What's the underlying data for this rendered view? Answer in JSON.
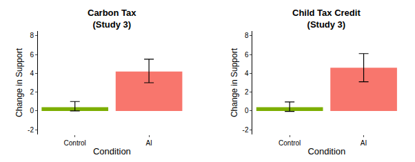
{
  "chart_data": [
    {
      "type": "bar",
      "title": "Carbon Tax\n(Study 3)",
      "categories": [
        "Control",
        "AI"
      ],
      "values": [
        0.4,
        4.2
      ],
      "error_plus": [
        0.6,
        1.3
      ],
      "error_minus": [
        0.4,
        1.2
      ],
      "colors": [
        "#7CAE00",
        "#F8766D"
      ],
      "xlabel": "Condition",
      "ylabel": "Change in Support",
      "ylim": [
        -2.5,
        8.5
      ],
      "yticks": [
        -2,
        0,
        2,
        4,
        6,
        8
      ],
      "grid": false
    },
    {
      "type": "bar",
      "title": "Child Tax Credit\n(Study 3)",
      "categories": [
        "Control",
        "AI"
      ],
      "values": [
        0.4,
        4.6
      ],
      "error_plus": [
        0.55,
        1.5
      ],
      "error_minus": [
        0.45,
        1.5
      ],
      "colors": [
        "#7CAE00",
        "#F8766D"
      ],
      "xlabel": "Condition",
      "ylabel": "Change in Support",
      "ylim": [
        -2.5,
        8.5
      ],
      "yticks": [
        -2,
        0,
        2,
        4,
        6,
        8
      ],
      "grid": false
    }
  ]
}
